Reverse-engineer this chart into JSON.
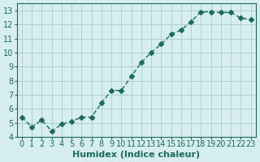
{
  "x": [
    0,
    1,
    2,
    3,
    4,
    5,
    6,
    7,
    8,
    9,
    10,
    11,
    12,
    13,
    14,
    15,
    16,
    17,
    18,
    19,
    20,
    21,
    22,
    23
  ],
  "y": [
    5.4,
    4.7,
    5.2,
    4.4,
    4.9,
    5.1,
    5.4,
    5.4,
    6.4,
    7.3,
    7.3,
    8.3,
    9.3,
    10.0,
    10.6,
    11.3,
    11.6,
    12.2,
    12.9,
    12.9,
    12.85,
    12.85,
    12.45,
    12.35
  ],
  "xlabel": "Humidex (Indice chaleur)",
  "ylim": [
    4,
    13.5
  ],
  "xlim": [
    -0.5,
    23.5
  ],
  "yticks": [
    4,
    5,
    6,
    7,
    8,
    9,
    10,
    11,
    12,
    13
  ],
  "xticks": [
    0,
    1,
    2,
    3,
    4,
    5,
    6,
    7,
    8,
    9,
    10,
    11,
    12,
    13,
    14,
    15,
    16,
    17,
    18,
    19,
    20,
    21,
    22,
    23
  ],
  "line_color": "#1a6b5a",
  "marker": "D",
  "marker_size": 3,
  "bg_color": "#d6eeee",
  "grid_color": "#b0d0d0",
  "tick_label_fontsize": 7,
  "xlabel_fontsize": 8
}
